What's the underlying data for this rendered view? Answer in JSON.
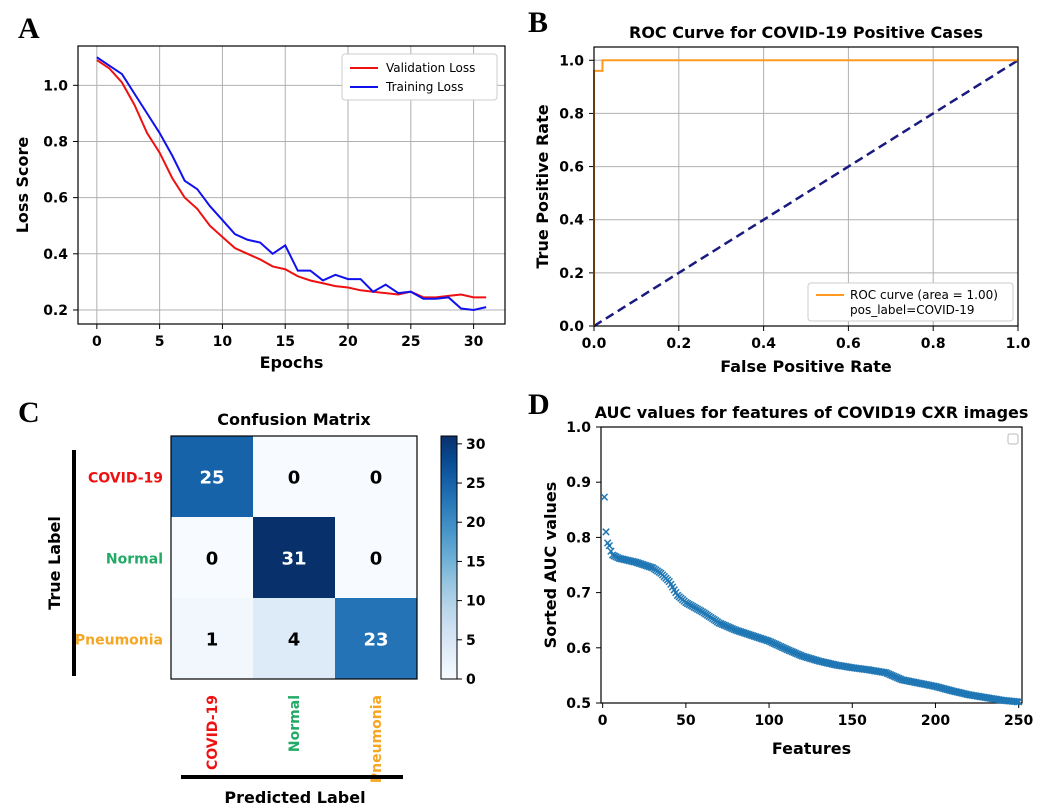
{
  "chart_data": [
    {
      "panel": "A",
      "type": "line",
      "title": "",
      "xlabel": "Epochs",
      "ylabel": "Loss Score",
      "xlim": [
        -1.5,
        32.5
      ],
      "ylim": [
        0.15,
        1.14
      ],
      "xticks": [
        0,
        5,
        10,
        15,
        20,
        25,
        30
      ],
      "yticks": [
        0.2,
        0.4,
        0.6,
        0.8,
        1.0
      ],
      "grid": true,
      "legend_position": "top-right",
      "series": [
        {
          "name": "Validation Loss",
          "color": "#ee1111",
          "x": [
            0,
            1,
            2,
            3,
            4,
            5,
            6,
            7,
            8,
            9,
            10,
            11,
            12,
            13,
            14,
            15,
            16,
            17,
            18,
            19,
            20,
            21,
            22,
            23,
            24,
            25,
            26,
            27,
            28,
            29,
            30,
            31
          ],
          "y": [
            1.09,
            1.06,
            1.01,
            0.93,
            0.83,
            0.76,
            0.67,
            0.6,
            0.56,
            0.5,
            0.46,
            0.42,
            0.4,
            0.38,
            0.355,
            0.345,
            0.32,
            0.305,
            0.295,
            0.285,
            0.28,
            0.27,
            0.265,
            0.26,
            0.255,
            0.265,
            0.245,
            0.245,
            0.25,
            0.255,
            0.245,
            0.245
          ]
        },
        {
          "name": "Training Loss",
          "color": "#1111ee",
          "x": [
            0,
            1,
            2,
            3,
            4,
            5,
            6,
            7,
            8,
            9,
            10,
            11,
            12,
            13,
            14,
            15,
            16,
            17,
            18,
            19,
            20,
            21,
            22,
            23,
            24,
            25,
            26,
            27,
            28,
            29,
            30,
            31
          ],
          "y": [
            1.1,
            1.07,
            1.04,
            0.97,
            0.9,
            0.83,
            0.75,
            0.66,
            0.63,
            0.57,
            0.52,
            0.47,
            0.45,
            0.44,
            0.4,
            0.43,
            0.34,
            0.34,
            0.305,
            0.325,
            0.31,
            0.31,
            0.265,
            0.29,
            0.26,
            0.265,
            0.24,
            0.24,
            0.245,
            0.205,
            0.2,
            0.21
          ]
        }
      ]
    },
    {
      "panel": "B",
      "type": "line",
      "title": "ROC Curve for COVID-19 Positive Cases",
      "xlabel": "False Positive Rate",
      "ylabel": "True Positive Rate",
      "xlim": [
        0,
        1
      ],
      "ylim": [
        0,
        1.05
      ],
      "xticks": [
        "0.0",
        "0.2",
        "0.4",
        "0.6",
        "0.8",
        "1.0"
      ],
      "yticks": [
        "0.0",
        "0.2",
        "0.4",
        "0.6",
        "0.8",
        "1.0"
      ],
      "grid": true,
      "legend_position": "bottom-right",
      "legend_lines": [
        "ROC curve (area = 1.00)",
        "pos_label=COVID-19"
      ],
      "series": [
        {
          "name": "ROC curve",
          "color": "#ff9922",
          "x": [
            0,
            0,
            0.02,
            0.02,
            1.0
          ],
          "y": [
            0,
            0.96,
            0.96,
            1.0,
            1.0
          ]
        },
        {
          "color": "#1a1a80",
          "dashed": true,
          "x": [
            0,
            1
          ],
          "y": [
            0,
            1
          ]
        }
      ]
    },
    {
      "panel": "C",
      "type": "heatmap",
      "title": "Confusion Matrix",
      "xlabel": "Predicted Label",
      "ylabel": "True Label",
      "categories": [
        "COVID-19",
        "Normal",
        "Pneumonia"
      ],
      "category_colors": [
        "#ee1111",
        "#22aa66",
        "#f5a623"
      ],
      "values": [
        [
          25,
          0,
          0
        ],
        [
          0,
          31,
          0
        ],
        [
          1,
          4,
          23
        ]
      ],
      "colorbar_range": [
        0,
        31
      ],
      "colorbar_ticks": [
        "0",
        "5",
        "10",
        "15",
        "20",
        "25",
        "30"
      ]
    },
    {
      "panel": "D",
      "type": "scatter",
      "title": "AUC values for features of COVID19 CXR images",
      "xlabel": "Features",
      "ylabel": "Sorted AUC values",
      "xlim": [
        -1,
        252
      ],
      "ylim": [
        0.5,
        1.0
      ],
      "xticks": [
        "0",
        "50",
        "100",
        "150",
        "200",
        "250"
      ],
      "yticks": [
        "0.5",
        "0.6",
        "0.7",
        "0.8",
        "0.9",
        "1.0"
      ],
      "grid": false,
      "marker": "x",
      "color": "#1f77b4",
      "profile_x": [
        1,
        2,
        3,
        4,
        5,
        6,
        10,
        20,
        30,
        35,
        40,
        45,
        50,
        60,
        70,
        80,
        90,
        100,
        110,
        120,
        130,
        140,
        150,
        160,
        170,
        180,
        190,
        200,
        210,
        220,
        230,
        240,
        250
      ],
      "profile_y": [
        0.873,
        0.81,
        0.79,
        0.785,
        0.775,
        0.768,
        0.762,
        0.755,
        0.745,
        0.735,
        0.72,
        0.695,
        0.682,
        0.665,
        0.645,
        0.632,
        0.622,
        0.612,
        0.598,
        0.585,
        0.576,
        0.569,
        0.564,
        0.56,
        0.555,
        0.542,
        0.536,
        0.53,
        0.522,
        0.515,
        0.51,
        0.505,
        0.502
      ]
    }
  ],
  "panels": {
    "a_letter": "A",
    "b_letter": "B",
    "c_letter": "C",
    "d_letter": "D"
  }
}
